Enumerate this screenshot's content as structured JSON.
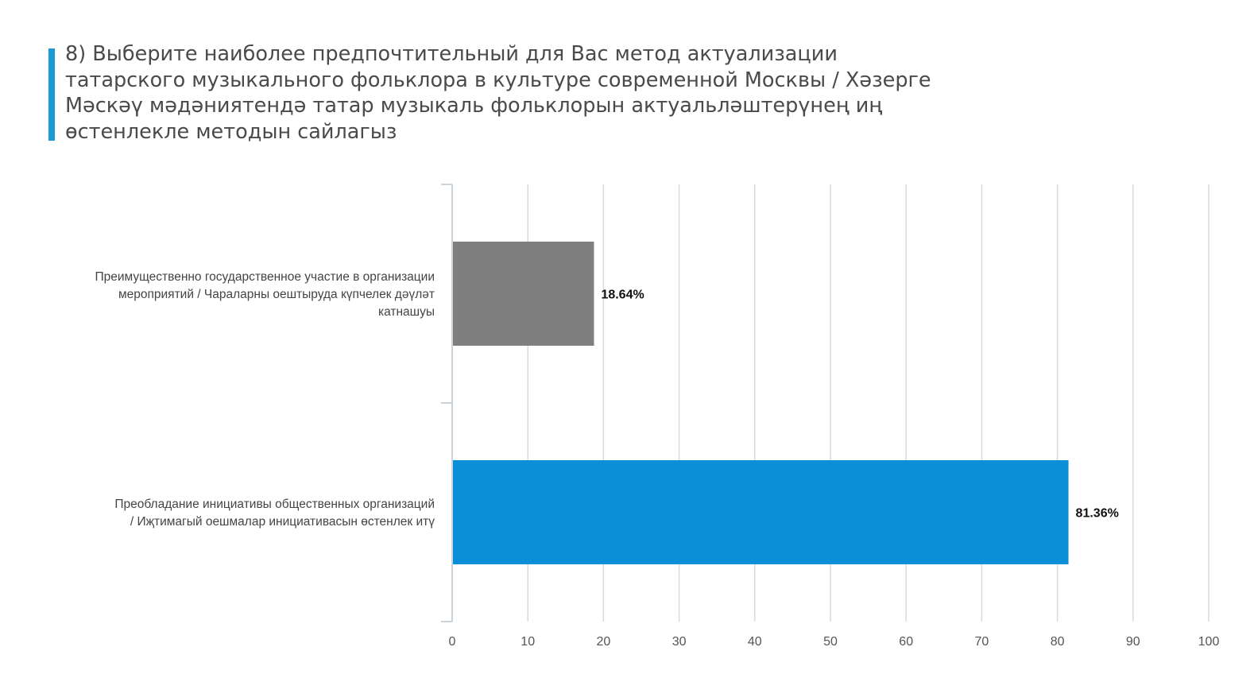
{
  "title_lines": [
    "8) Выберите наиболее предпочтительный для Вас метод актуализации",
    "татарского музыкального фольклора в культуре современной Москвы / Хәзерге",
    "Мәскәү мәдәниятендә татар музыкаль фольклорын актуальләштерүнең иң",
    "өстенлекле методын сайлагыз"
  ],
  "chart_data": {
    "type": "bar",
    "orientation": "horizontal",
    "title": "8) Выберите наиболее предпочтительный для Вас метод актуализации татарского музыкального фольклора в культуре современной Москвы / Хәзерге Мәскәү мәдәниятендә татар музыкаль фольклорын актуальләштерүнең иң өстенлекле методын сайлагыз",
    "categories": [
      "Преимущественно государственное участие в организации мероприятий / Чараларны оештыруда күпчелек дәүләт катнашуы",
      "Преобладание инициативы общественных организаций / Иҗтимагый оешмалар инициативасын өстенлек итү"
    ],
    "category_label_lines": [
      [
        "Преимущественно государственное участие в организации",
        "мероприятий / Чараларны оештыруда күпчелек дәүләт",
        "катнашуы"
      ],
      [
        "Преобладание инициативы общественных организаций",
        "/ Иҗтимагый оешмалар инициативасын өстенлек итү"
      ]
    ],
    "values": [
      18.64,
      81.36
    ],
    "data_labels": [
      "18.64%",
      "81.36%"
    ],
    "colors": [
      "#7f7f7f",
      "#0a8fd6"
    ],
    "xlim": [
      0,
      100
    ],
    "xticks": [
      "0",
      "10",
      "20",
      "30",
      "40",
      "50",
      "60",
      "70",
      "80",
      "90",
      "100"
    ],
    "grid": true,
    "legend": "none",
    "xlabel": "",
    "ylabel": ""
  }
}
